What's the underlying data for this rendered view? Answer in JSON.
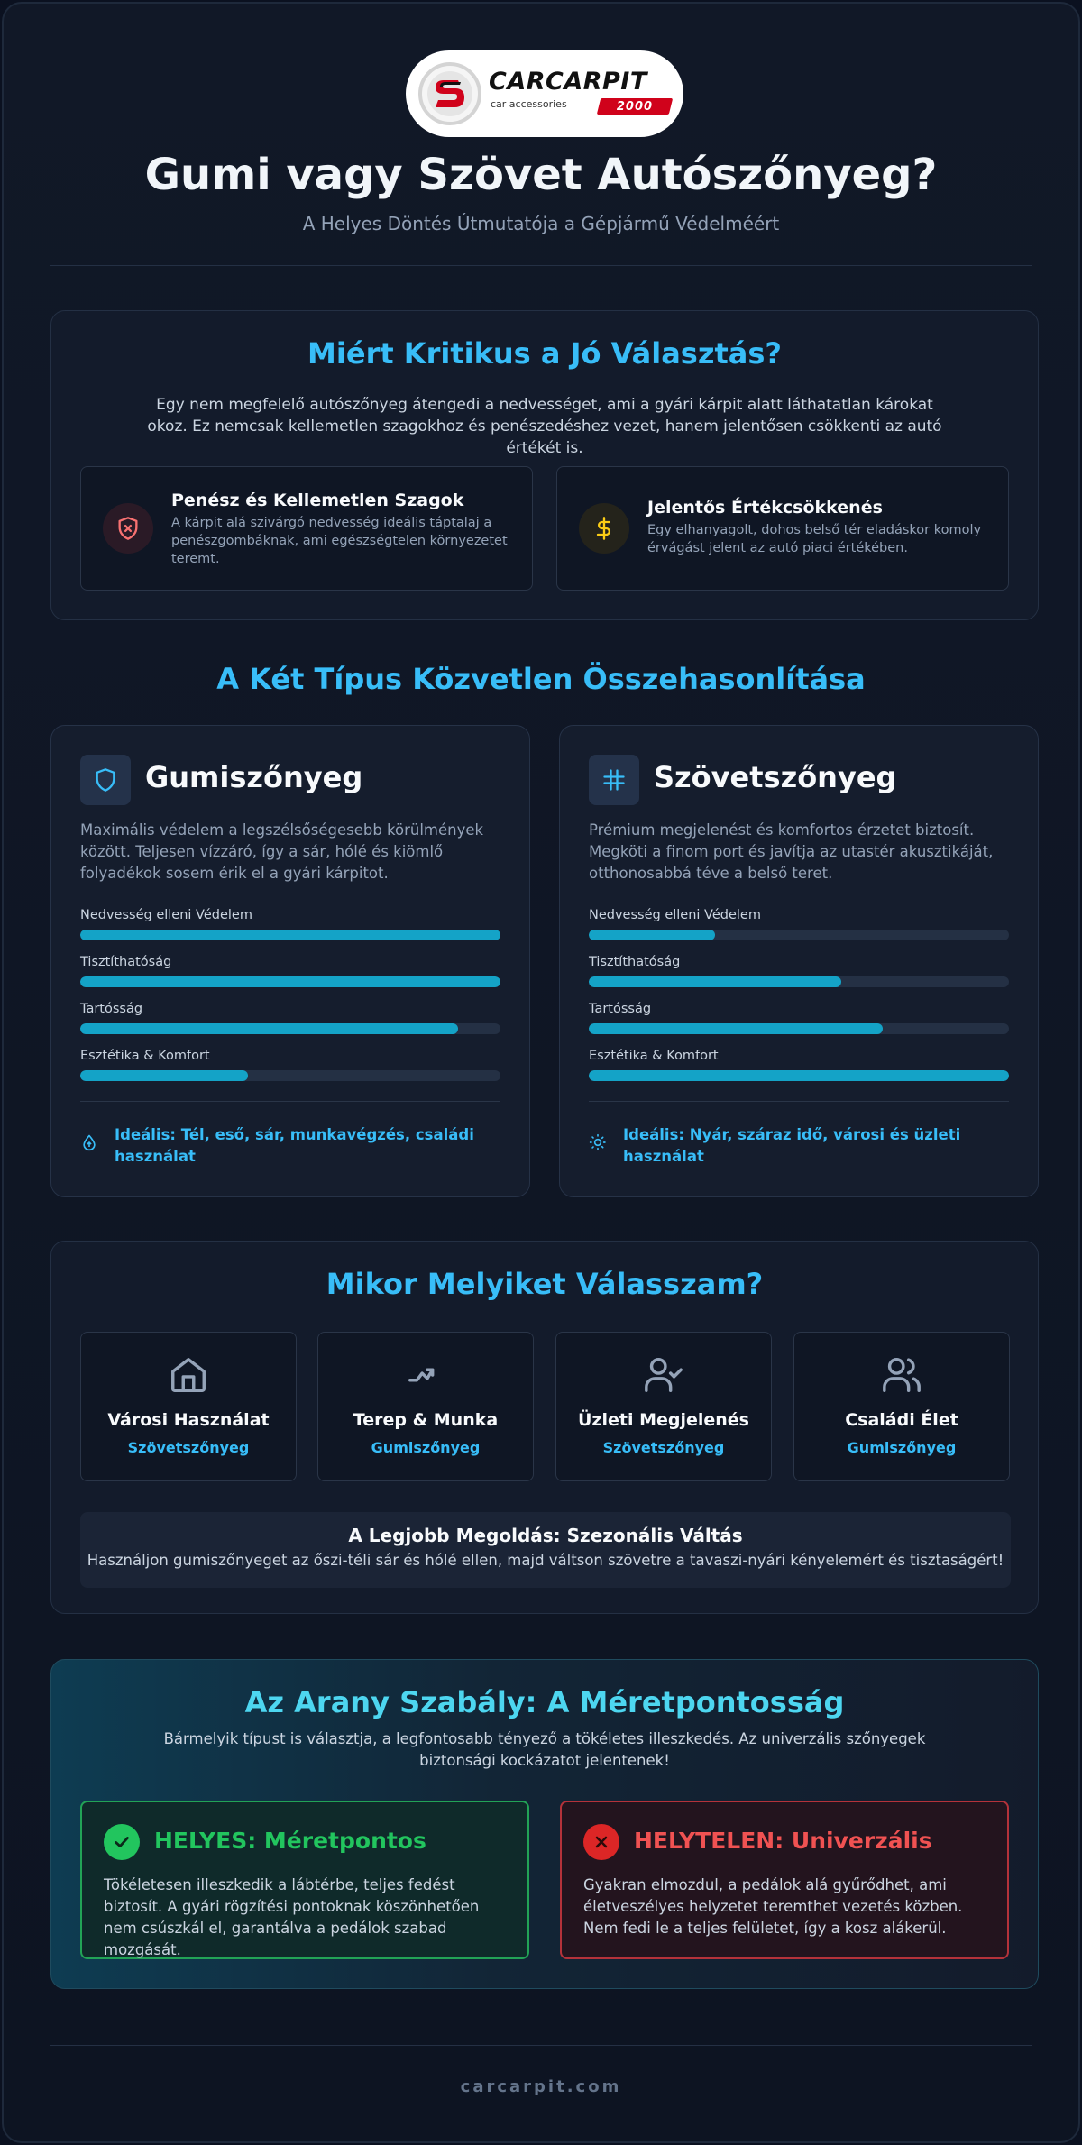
{
  "brand": {
    "logo_word": "CARCARPIT",
    "logo_sub": "car accessories",
    "logo_badge": "2000",
    "colors": {
      "accent": "#38bdf8",
      "bar": "#14a3c7",
      "brand_red": "#d0021b",
      "good": "#22c55e",
      "bad": "#ef4444"
    }
  },
  "header": {
    "title": "Gumi vagy Szövet Autószőnyeg?",
    "subtitle": "A Helyes Döntés Útmutatója a Gépjármű Védelméért"
  },
  "why": {
    "title": "Miért Kritikus a Jó Választás?",
    "description": "Egy nem megfelelő autószőnyeg átengedi a nedvességet, ami a gyári kárpit alatt láthatatlan károkat okoz. Ez nemcsak kellemetlen szagokhoz és penészedéshez vezet, hanem jelentősen csökkenti az autó értékét is.",
    "cards": [
      {
        "icon": "shield-x-icon",
        "title": "Penész és Kellemetlen Szagok",
        "text": "A kárpit alá szivárgó nedvesség ideális táptalaj a penészgombáknak, ami egészségtelen környezetet teremt."
      },
      {
        "icon": "dollar-icon",
        "title": "Jelentős Értékcsökkenés",
        "text": "Egy elhanyagolt, dohos belső tér eladáskor komoly érvágást jelent az autó piaci értékében."
      }
    ]
  },
  "comparison": {
    "title": "A Két Típus Közvetlen Összehasonlítása",
    "types": [
      {
        "icon": "shield-icon",
        "name": "Gumiszőnyeg",
        "description": "Maximális védelem a legszélsőségesebb körülmények között. Teljesen vízzáró, így a sár, hólé és kiömlő folyadékok sosem érik el a gyári kárpitot.",
        "metrics": [
          {
            "label": "Nedvesség elleni Védelem",
            "value": 100
          },
          {
            "label": "Tisztíthatóság",
            "value": 100
          },
          {
            "label": "Tartósság",
            "value": 90
          },
          {
            "label": "Esztétika & Komfort",
            "value": 40
          }
        ],
        "ideal_icon": "droplet-icon",
        "ideal": "Ideális: Tél, eső, sár, munkavégzés, családi használat"
      },
      {
        "icon": "grid-icon",
        "name": "Szövetszőnyeg",
        "description": "Prémium megjelenést és komfortos érzetet biztosít. Megköti a finom port és javítja az utastér akusztikáját, otthonosabbá téve a belső teret.",
        "metrics": [
          {
            "label": "Nedvesség elleni Védelem",
            "value": 30
          },
          {
            "label": "Tisztíthatóság",
            "value": 60
          },
          {
            "label": "Tartósság",
            "value": 70
          },
          {
            "label": "Esztétika & Komfort",
            "value": 100
          }
        ],
        "ideal_icon": "sun-icon",
        "ideal": "Ideális: Nyár, száraz idő, városi és üzleti használat"
      }
    ]
  },
  "when": {
    "title": "Mikor Melyiket Válasszam?",
    "uses": [
      {
        "icon": "home-icon",
        "title": "Városi Használat",
        "recommendation": "Szövetszőnyeg"
      },
      {
        "icon": "trend-icon",
        "title": "Terep & Munka",
        "recommendation": "Gumiszőnyeg"
      },
      {
        "icon": "user-check-icon",
        "title": "Üzleti Megjelenés",
        "recommendation": "Szövetszőnyeg"
      },
      {
        "icon": "users-icon",
        "title": "Családi Élet",
        "recommendation": "Gumiszőnyeg"
      }
    ],
    "best": {
      "title": "A Legjobb Megoldás: Szezonális Váltás",
      "text": "Használjon gumiszőnyeget az őszi-téli sár és hólé ellen, majd váltson szövetre a tavaszi-nyári kényelemért és tisztaságért!"
    }
  },
  "golden_rule": {
    "title": "Az Arany Szabály: A Méretpontosság",
    "description": "Bármelyik típust is választja, a legfontosabb tényező a tökéletes illeszkedés. Az univerzális szőnyegek biztonsági kockázatot jelentenek!",
    "good": {
      "icon": "check-icon",
      "title": "HELYES: Méretpontos",
      "text": "Tökéletesen illeszkedik a lábtérbe, teljes fedést biztosít. A gyári rögzítési pontoknak köszönhetően nem csúszkál el, garantálva a pedálok szabad mozgását."
    },
    "bad": {
      "icon": "x-icon",
      "title": "HELYTELEN: Univerzális",
      "text": "Gyakran elmozdul, a pedálok alá gyűrődhet, ami életveszélyes helyzetet teremthet vezetés közben. Nem fedi le a teljes felületet, így a kosz alákerül."
    }
  },
  "footer": {
    "site": "carcarpit.com"
  }
}
